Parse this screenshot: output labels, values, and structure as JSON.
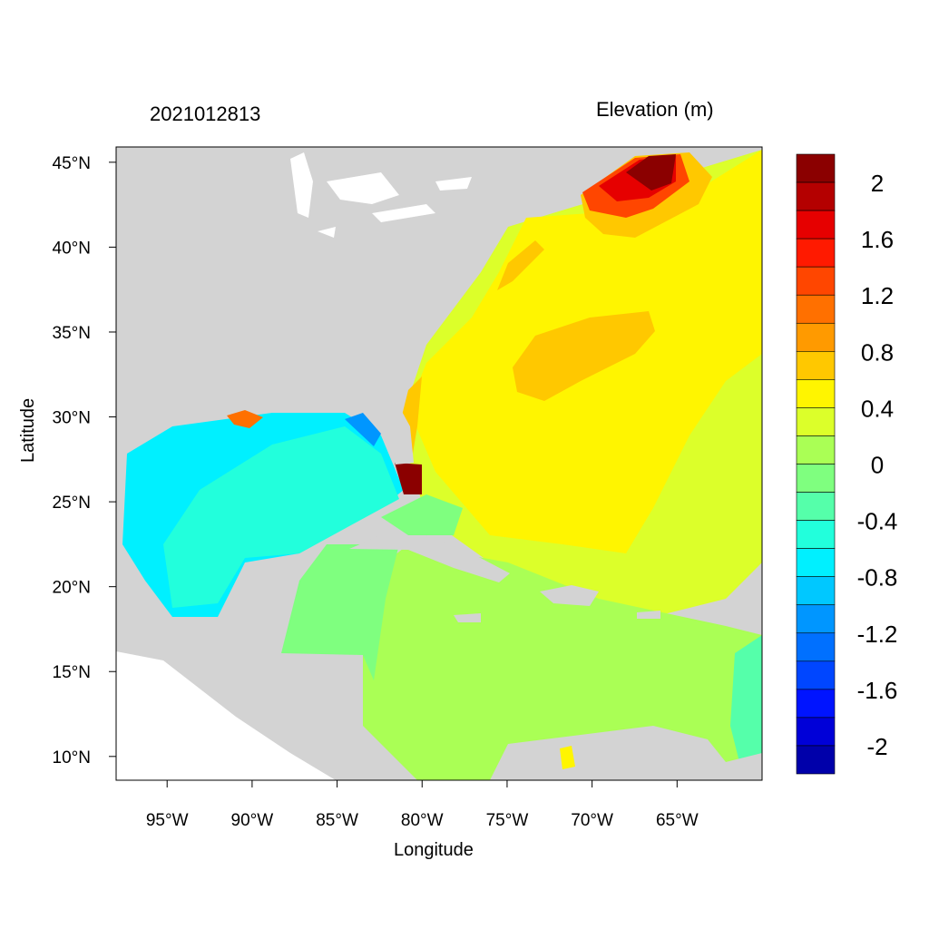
{
  "chart_data": {
    "type": "heatmap",
    "title_left": "2021012813",
    "title_right": "Elevation (m)",
    "xlabel": "Longitude",
    "ylabel": "Latitude",
    "xlim": [
      -98.0,
      -60.0
    ],
    "ylim": [
      8.6,
      45.9
    ],
    "x_ticks": [
      {
        "value": -95,
        "label": "95°W"
      },
      {
        "value": -90,
        "label": "90°W"
      },
      {
        "value": -85,
        "label": "85°W"
      },
      {
        "value": -80,
        "label": "80°W"
      },
      {
        "value": -75,
        "label": "75°W"
      },
      {
        "value": -70,
        "label": "70°W"
      },
      {
        "value": -65,
        "label": "65°W"
      }
    ],
    "y_ticks": [
      {
        "value": 45,
        "label": "45°N"
      },
      {
        "value": 40,
        "label": "40°N"
      },
      {
        "value": 35,
        "label": "35°N"
      },
      {
        "value": 30,
        "label": "30°N"
      },
      {
        "value": 25,
        "label": "25°N"
      },
      {
        "value": 20,
        "label": "20°N"
      },
      {
        "value": 15,
        "label": "15°N"
      },
      {
        "value": 10,
        "label": "10°N"
      }
    ],
    "colorbar": {
      "levels": [
        2.2,
        2.0,
        1.8,
        1.6,
        1.4,
        1.2,
        1.0,
        0.8,
        0.6,
        0.4,
        0.2,
        0,
        -0.2,
        -0.4,
        -0.6,
        -0.8,
        -1.0,
        -1.2,
        -1.4,
        -1.6,
        -1.8,
        -2.0,
        -2.2
      ],
      "colors": [
        "#8b0000",
        "#b40000",
        "#e60000",
        "#ff1a00",
        "#ff4600",
        "#ff7000",
        "#ff9a00",
        "#ffc800",
        "#fff500",
        "#dcff2a",
        "#aaff55",
        "#7fff7f",
        "#55ffaa",
        "#22ffdc",
        "#00f0ff",
        "#00c8ff",
        "#0096ff",
        "#0070ff",
        "#0046ff",
        "#0014ff",
        "#0000d8",
        "#0000aa"
      ],
      "labels": [
        {
          "value": 2,
          "label": "2"
        },
        {
          "value": 1.6,
          "label": "1.6"
        },
        {
          "value": 1.2,
          "label": "1.2"
        },
        {
          "value": 0.8,
          "label": "0.8"
        },
        {
          "value": 0.4,
          "label": "0.4"
        },
        {
          "value": 0,
          "label": "0"
        },
        {
          "value": -0.4,
          "label": "-0.4"
        },
        {
          "value": -0.8,
          "label": "-0.8"
        },
        {
          "value": -1.2,
          "label": "-1.2"
        },
        {
          "value": -1.6,
          "label": "-1.6"
        },
        {
          "value": -2,
          "label": "-2"
        }
      ]
    },
    "land_color": "#d3d3d3"
  }
}
